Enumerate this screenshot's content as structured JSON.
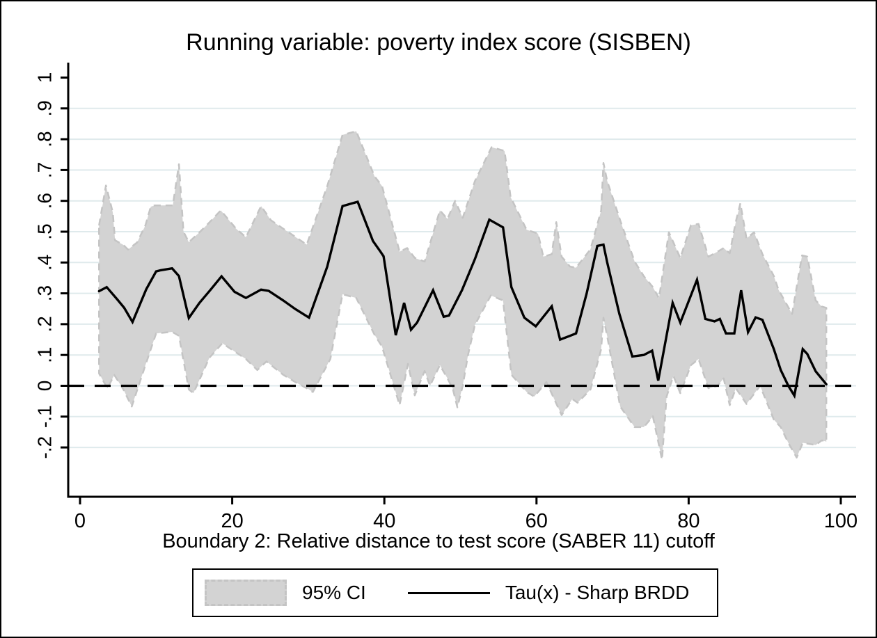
{
  "title": "Running variable: poverty index score (SISBEN)",
  "x_axis": {
    "title": "Boundary 2: Relative distance to test score (SABER 11) cutoff",
    "ticks": [
      0,
      20,
      40,
      60,
      80,
      100
    ]
  },
  "y_axis": {
    "tick_labels": [
      "1",
      ".9",
      ".8",
      ".7",
      ".6",
      ".5",
      ".4",
      ".3",
      ".2",
      ".1",
      "0",
      "-.1",
      "-.2"
    ],
    "tick_values": [
      1,
      0.9,
      0.8,
      0.7,
      0.6,
      0.5,
      0.4,
      0.3,
      0.2,
      0.1,
      0,
      -0.1,
      -0.2
    ],
    "grid_values": [
      0.9,
      0.8,
      0.7,
      0.6,
      0.5,
      0.4,
      0.3,
      0.2,
      0.1,
      0,
      -0.1,
      -0.2
    ]
  },
  "legend": {
    "ci_label": "95% CI",
    "tau_label": "Tau(x) - Sharp BRDD"
  },
  "colors": {
    "band_fill": "#d3d3d3",
    "band_edge": "#c4c4c4",
    "line": "#000000",
    "grid": "#dfeaec",
    "axis": "#000000",
    "zero_line": "#000000",
    "background": "#ffffff"
  },
  "chart_data": {
    "type": "line",
    "title": "Running variable: poverty index score (SISBEN)",
    "xlabel": "Boundary 2: Relative distance to test score (SABER 11) cutoff",
    "ylabel": "",
    "xlim": [
      0,
      100
    ],
    "ylim": [
      -0.36,
      1.05
    ],
    "grid": true,
    "legend_position": "bottom",
    "zero_reference_line": 0,
    "series": [
      {
        "name": "Tau(x) - Sharp BRDD",
        "style": "solid-black-line",
        "points": [
          [
            2.5,
            0.307
          ],
          [
            3.5,
            0.32
          ],
          [
            4.9,
            0.28
          ],
          [
            5.8,
            0.253
          ],
          [
            6.9,
            0.207
          ],
          [
            8.7,
            0.313
          ],
          [
            10.0,
            0.371
          ],
          [
            10.6,
            0.375
          ],
          [
            12.1,
            0.381
          ],
          [
            13.0,
            0.356
          ],
          [
            14.3,
            0.22
          ],
          [
            15.7,
            0.269
          ],
          [
            17.1,
            0.31
          ],
          [
            18.6,
            0.355
          ],
          [
            20.3,
            0.305
          ],
          [
            21.8,
            0.285
          ],
          [
            23.8,
            0.312
          ],
          [
            24.8,
            0.308
          ],
          [
            26.7,
            0.277
          ],
          [
            28.3,
            0.249
          ],
          [
            30.1,
            0.221
          ],
          [
            32.5,
            0.387
          ],
          [
            34.5,
            0.583
          ],
          [
            36.5,
            0.597
          ],
          [
            38.5,
            0.47
          ],
          [
            39.5,
            0.435
          ],
          [
            39.9,
            0.42
          ],
          [
            41.5,
            0.164
          ],
          [
            42.6,
            0.269
          ],
          [
            43.5,
            0.182
          ],
          [
            44.3,
            0.205
          ],
          [
            46.4,
            0.31
          ],
          [
            47.8,
            0.224
          ],
          [
            48.5,
            0.228
          ],
          [
            50.2,
            0.31
          ],
          [
            51.9,
            0.411
          ],
          [
            53.8,
            0.539
          ],
          [
            55.6,
            0.514
          ],
          [
            56.7,
            0.32
          ],
          [
            58.4,
            0.221
          ],
          [
            59.9,
            0.193
          ],
          [
            62.0,
            0.258
          ],
          [
            63.1,
            0.15
          ],
          [
            64.4,
            0.162
          ],
          [
            65.2,
            0.17
          ],
          [
            66.6,
            0.3
          ],
          [
            68.0,
            0.454
          ],
          [
            68.8,
            0.458
          ],
          [
            69.3,
            0.4
          ],
          [
            70.9,
            0.233
          ],
          [
            72.6,
            0.095
          ],
          [
            74.1,
            0.1
          ],
          [
            75.2,
            0.114
          ],
          [
            76.0,
            0.017
          ],
          [
            77.9,
            0.269
          ],
          [
            78.9,
            0.205
          ],
          [
            81.1,
            0.344
          ],
          [
            82.2,
            0.217
          ],
          [
            83.4,
            0.209
          ],
          [
            84.1,
            0.217
          ],
          [
            84.9,
            0.17
          ],
          [
            86.0,
            0.17
          ],
          [
            86.9,
            0.31
          ],
          [
            87.8,
            0.174
          ],
          [
            88.8,
            0.222
          ],
          [
            89.7,
            0.214
          ],
          [
            91.2,
            0.119
          ],
          [
            92.1,
            0.051
          ],
          [
            93.1,
            0.0
          ],
          [
            93.9,
            -0.032
          ],
          [
            95.0,
            0.119
          ],
          [
            95.6,
            0.103
          ],
          [
            96.7,
            0.047
          ],
          [
            98.1,
            0.005
          ]
        ]
      },
      {
        "name": "95% CI upper bound",
        "style": "band-edge",
        "points": [
          [
            2.5,
            0.52
          ],
          [
            3.4,
            0.65
          ],
          [
            4.3,
            0.563
          ],
          [
            4.6,
            0.472
          ],
          [
            5.7,
            0.457
          ],
          [
            6.3,
            0.442
          ],
          [
            7.5,
            0.465
          ],
          [
            8.6,
            0.521
          ],
          [
            9.3,
            0.581
          ],
          [
            9.8,
            0.585
          ],
          [
            12.2,
            0.585
          ],
          [
            13.0,
            0.719
          ],
          [
            13.6,
            0.5
          ],
          [
            14.3,
            0.466
          ],
          [
            15.7,
            0.498
          ],
          [
            17.0,
            0.53
          ],
          [
            18.5,
            0.569
          ],
          [
            20.5,
            0.51
          ],
          [
            21.8,
            0.482
          ],
          [
            23.8,
            0.583
          ],
          [
            25.1,
            0.537
          ],
          [
            26.7,
            0.51
          ],
          [
            29.8,
            0.458
          ],
          [
            32.5,
            0.648
          ],
          [
            34.5,
            0.814
          ],
          [
            36.3,
            0.826
          ],
          [
            38.7,
            0.68
          ],
          [
            39.7,
            0.648
          ],
          [
            42.0,
            0.435
          ],
          [
            43.0,
            0.447
          ],
          [
            44.0,
            0.415
          ],
          [
            45.3,
            0.403
          ],
          [
            47.3,
            0.569
          ],
          [
            48.3,
            0.541
          ],
          [
            49.3,
            0.6
          ],
          [
            50.3,
            0.545
          ],
          [
            51.9,
            0.664
          ],
          [
            54.1,
            0.774
          ],
          [
            55.8,
            0.762
          ],
          [
            56.6,
            0.612
          ],
          [
            58.7,
            0.506
          ],
          [
            60.2,
            0.494
          ],
          [
            60.9,
            0.419
          ],
          [
            62.0,
            0.427
          ],
          [
            62.6,
            0.531
          ],
          [
            63.3,
            0.419
          ],
          [
            64.4,
            0.387
          ],
          [
            65.2,
            0.383
          ],
          [
            67.1,
            0.443
          ],
          [
            68.5,
            0.569
          ],
          [
            68.8,
            0.723
          ],
          [
            69.3,
            0.664
          ],
          [
            71.0,
            0.537
          ],
          [
            72.9,
            0.403
          ],
          [
            74.1,
            0.356
          ],
          [
            75.3,
            0.32
          ],
          [
            76.1,
            0.284
          ],
          [
            77.4,
            0.498
          ],
          [
            78.9,
            0.415
          ],
          [
            80.3,
            0.521
          ],
          [
            81.3,
            0.525
          ],
          [
            82.6,
            0.419
          ],
          [
            83.8,
            0.435
          ],
          [
            84.6,
            0.447
          ],
          [
            85.4,
            0.43
          ],
          [
            86.2,
            0.533
          ],
          [
            86.8,
            0.592
          ],
          [
            87.6,
            0.478
          ],
          [
            88.6,
            0.498
          ],
          [
            89.7,
            0.427
          ],
          [
            91.2,
            0.356
          ],
          [
            91.8,
            0.312
          ],
          [
            93.6,
            0.233
          ],
          [
            94.9,
            0.423
          ],
          [
            95.6,
            0.419
          ],
          [
            96.7,
            0.277
          ],
          [
            97.5,
            0.257
          ],
          [
            98.1,
            0.253
          ]
        ]
      },
      {
        "name": "95% CI lower bound",
        "style": "band-edge",
        "points": [
          [
            2.5,
            0.04
          ],
          [
            3.6,
            -0.008
          ],
          [
            4.5,
            0.035
          ],
          [
            5.7,
            -0.012
          ],
          [
            6.8,
            -0.067
          ],
          [
            8.5,
            0.06
          ],
          [
            10.0,
            0.17
          ],
          [
            12.1,
            0.175
          ],
          [
            13.0,
            0.162
          ],
          [
            14.3,
            -0.012
          ],
          [
            14.9,
            -0.024
          ],
          [
            17.0,
            0.091
          ],
          [
            18.7,
            0.138
          ],
          [
            21.8,
            0.087
          ],
          [
            23.3,
            0.051
          ],
          [
            24.5,
            0.079
          ],
          [
            26.7,
            0.036
          ],
          [
            28.3,
            0.012
          ],
          [
            30.1,
            -0.012
          ],
          [
            30.6,
            -0.02
          ],
          [
            32.9,
            0.087
          ],
          [
            34.5,
            0.297
          ],
          [
            36.3,
            0.285
          ],
          [
            38.7,
            0.166
          ],
          [
            39.7,
            0.127
          ],
          [
            42.0,
            -0.063
          ],
          [
            43.1,
            0.071
          ],
          [
            44.0,
            -0.031
          ],
          [
            45.3,
            0.048
          ],
          [
            46.0,
            0.0
          ],
          [
            47.3,
            0.067
          ],
          [
            48.3,
            0.024
          ],
          [
            49.0,
            -0.01
          ],
          [
            49.6,
            -0.07
          ],
          [
            50.3,
            0.0
          ],
          [
            51.0,
            0.1
          ],
          [
            51.9,
            0.198
          ],
          [
            54.0,
            0.293
          ],
          [
            55.6,
            0.277
          ],
          [
            56.7,
            0.036
          ],
          [
            58.7,
            -0.02
          ],
          [
            59.7,
            -0.035
          ],
          [
            61.3,
            0.012
          ],
          [
            63.3,
            -0.095
          ],
          [
            64.7,
            -0.043
          ],
          [
            65.4,
            -0.055
          ],
          [
            67.1,
            -0.012
          ],
          [
            68.5,
            0.119
          ],
          [
            68.8,
            0.221
          ],
          [
            69.3,
            0.16
          ],
          [
            71.0,
            -0.067
          ],
          [
            72.9,
            -0.134
          ],
          [
            74.1,
            -0.134
          ],
          [
            75.3,
            -0.099
          ],
          [
            76.5,
            -0.24
          ],
          [
            77.1,
            -0.035
          ],
          [
            78.0,
            0.032
          ],
          [
            78.9,
            -0.024
          ],
          [
            80.3,
            0.067
          ],
          [
            81.3,
            0.087
          ],
          [
            82.6,
            -0.008
          ],
          [
            83.8,
            0.0
          ],
          [
            84.6,
            0.024
          ],
          [
            85.4,
            -0.063
          ],
          [
            86.2,
            -0.008
          ],
          [
            87.6,
            -0.059
          ],
          [
            89.4,
            0.0
          ],
          [
            91.2,
            -0.11
          ],
          [
            92.1,
            -0.134
          ],
          [
            93.1,
            -0.185
          ],
          [
            94.2,
            -0.233
          ],
          [
            95.0,
            -0.185
          ],
          [
            96.7,
            -0.192
          ],
          [
            97.5,
            -0.177
          ],
          [
            98.1,
            -0.181
          ]
        ]
      }
    ]
  }
}
